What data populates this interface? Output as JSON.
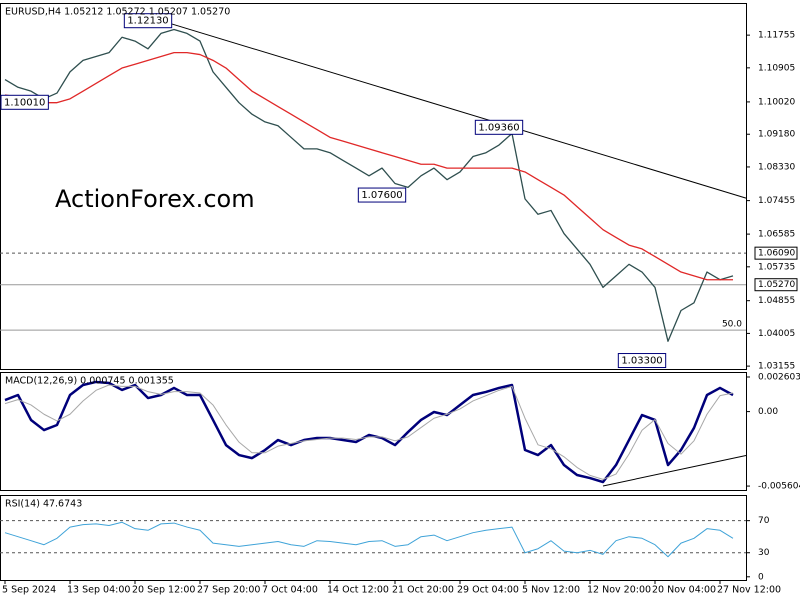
{
  "chart_data": [
    {
      "type": "line",
      "title": "EURUSD,H4  1.05212 1.05272 1.05207 1.05270",
      "watermark": "ActionForex.com",
      "categories": [
        "5 Sep 2024",
        null,
        null,
        null,
        null,
        "13 Sep 04:00",
        null,
        null,
        null,
        null,
        "20 Sep 12:00",
        null,
        null,
        null,
        null,
        "27 Sep 20:00",
        null,
        null,
        null,
        null,
        "7 Oct 04:00",
        null,
        null,
        null,
        null,
        "14 Oct 12:00",
        null,
        null,
        null,
        null,
        "21 Oct 20:00",
        null,
        null,
        null,
        null,
        "29 Oct 04:00",
        null,
        null,
        null,
        null,
        "5 Nov 12:00",
        null,
        null,
        null,
        null,
        "12 Nov 20:00",
        null,
        null,
        null,
        null,
        "20 Nov 04:00",
        null,
        null,
        null,
        null,
        "27 Nov 12:00",
        null
      ],
      "series": [
        {
          "color": "#2f4f4f",
          "values": [
            1.106,
            1.104,
            1.103,
            1.101,
            1.1025,
            1.108,
            1.111,
            1.112,
            1.113,
            1.117,
            1.116,
            1.114,
            1.118,
            1.119,
            1.118,
            1.116,
            1.108,
            1.104,
            1.1,
            1.097,
            1.095,
            1.094,
            1.091,
            1.088,
            1.088,
            1.087,
            1.085,
            1.083,
            1.081,
            1.083,
            1.079,
            1.078,
            1.081,
            1.083,
            1.08,
            1.082,
            1.086,
            1.087,
            1.089,
            1.092,
            1.075,
            1.071,
            1.072,
            1.066,
            1.062,
            1.058,
            1.052,
            1.055,
            1.058,
            1.056,
            1.052,
            1.038,
            1.046,
            1.048,
            1.056,
            1.054,
            1.055
          ]
        },
        {
          "color": "#e02828",
          "values": [
            1.102,
            1.1015,
            1.101,
            1.1,
            1.1,
            1.101,
            1.103,
            1.105,
            1.107,
            1.109,
            1.11,
            1.111,
            1.112,
            1.113,
            1.113,
            1.1125,
            1.111,
            1.109,
            1.106,
            1.103,
            1.101,
            1.099,
            1.097,
            1.095,
            1.093,
            1.091,
            1.09,
            1.089,
            1.088,
            1.087,
            1.086,
            1.085,
            1.084,
            1.084,
            1.083,
            1.083,
            1.083,
            1.083,
            1.083,
            1.083,
            1.082,
            1.08,
            1.078,
            1.076,
            1.073,
            1.07,
            1.067,
            1.065,
            1.063,
            1.062,
            1.06,
            1.058,
            1.056,
            1.055,
            1.054,
            1.054,
            1.054
          ]
        }
      ],
      "ylim": [
        1.0308,
        1.1259
      ],
      "yticks": [
        1.11755,
        1.10905,
        {
          "value": 1.1002,
          "label": "1.10020"
        },
        {
          "value": 1.0918,
          "label": "1.09180"
        },
        {
          "value": 1.0833,
          "label": "1.08330"
        },
        1.07455,
        1.06585,
        1.05735,
        1.04855,
        1.04005,
        1.03155
      ],
      "levels": [
        {
          "value": 1.0609,
          "label": "1.06090",
          "style": "dashed"
        },
        {
          "value": 1.0527,
          "label": "1.05270",
          "style": "solid"
        },
        {
          "value": 1.0409,
          "label": "50.0",
          "style": "solid",
          "label_position": "inside"
        }
      ],
      "annotations": [
        {
          "x": 11,
          "value": 1.1213,
          "label": "1.12130"
        },
        {
          "x": 1,
          "value": 1.1001,
          "label": "1.10010"
        },
        {
          "x": 38,
          "value": 1.0936,
          "label": "1.09360"
        },
        {
          "x": 29,
          "value": 1.076,
          "label": "1.07600"
        },
        {
          "x": 49,
          "value": 1.033,
          "label": "1.03300"
        }
      ],
      "trendline": {
        "x": [
          12,
          57
        ],
        "values": [
          1.1213,
          1.0752
        ]
      }
    },
    {
      "type": "line",
      "title": "MACD(12,26,9) 0.000745 0.001355",
      "series": [
        {
          "color": "#00007a",
          "width": 2.5,
          "values": [
            0.00087,
            0.00125,
            -0.00063,
            -0.00139,
            -0.00101,
            0.00125,
            0.002,
            0.00223,
            0.00215,
            0.00163,
            0.002,
            0.00102,
            0.00125,
            0.00178,
            0.00125,
            0.00125,
            -0.00063,
            -0.00252,
            -0.00327,
            -0.0035,
            -0.00289,
            -0.00214,
            -0.00252,
            -0.00214,
            -0.00199,
            -0.00199,
            -0.00214,
            -0.00229,
            -0.00176,
            -0.00199,
            -0.00252,
            -0.00154,
            -0.00063,
            -3e-05,
            -0.00026,
            0.0005,
            0.00125,
            0.00148,
            0.00178,
            0.002,
            -0.00289,
            -0.00327,
            -0.00252,
            -0.00402,
            -0.00477,
            -0.005,
            -0.0053,
            -0.00402,
            -0.00214,
            -0.00026,
            -0.00063,
            -0.00402,
            -0.00289,
            -0.00123,
            0.00125,
            0.00178,
            0.00125
          ]
        },
        {
          "color": "#a8a8a8",
          "width": 1,
          "values": [
            0.0006,
            0.0009,
            0.0005,
            -0.0002,
            -0.0007,
            -0.0002,
            0.0008,
            0.0016,
            0.002,
            0.0019,
            0.0019,
            0.0015,
            0.0013,
            0.0015,
            0.0015,
            0.0014,
            0.0005,
            -0.001,
            -0.0023,
            -0.0031,
            -0.0031,
            -0.0026,
            -0.0024,
            -0.0022,
            -0.0021,
            -0.002,
            -0.002,
            -0.0021,
            -0.0019,
            -0.0019,
            -0.0022,
            -0.0019,
            -0.0012,
            -0.0005,
            -0.0002,
            0.0002,
            0.0008,
            0.0012,
            0.0016,
            0.0019,
            -0.0005,
            -0.0025,
            -0.0028,
            -0.0034,
            -0.0042,
            -0.0048,
            -0.0051,
            -0.0047,
            -0.0032,
            -0.0014,
            -0.0006,
            -0.0024,
            -0.0032,
            -0.0022,
            -0.0002,
            0.0012,
            0.0014
          ]
        }
      ],
      "ylim": [
        -0.0059,
        0.00298
      ],
      "yticks": [
        0.002603,
        {
          "value": 0,
          "label": "0.00"
        },
        -0.005604
      ],
      "trendline": {
        "x": [
          46,
          57
        ],
        "values": [
          -0.0056,
          -0.0033
        ]
      }
    },
    {
      "type": "line",
      "title": "RSI(14) 47.6743",
      "series": [
        {
          "color": "#3fa3d8",
          "width": 1,
          "values": [
            55,
            50,
            45,
            40,
            48,
            62,
            65,
            66,
            64,
            68,
            60,
            58,
            66,
            67,
            62,
            58,
            42,
            40,
            38,
            40,
            42,
            44,
            40,
            38,
            45,
            44,
            42,
            40,
            44,
            45,
            38,
            40,
            50,
            52,
            45,
            50,
            55,
            58,
            60,
            62,
            30,
            35,
            45,
            32,
            30,
            33,
            28,
            45,
            50,
            48,
            40,
            25,
            42,
            48,
            60,
            58,
            48
          ]
        }
      ],
      "ylim": [
        -4,
        102
      ],
      "yticks": [
        70,
        30,
        0
      ],
      "levels": [
        {
          "value": 70,
          "style": "dashed"
        },
        {
          "value": 30,
          "style": "dashed"
        }
      ]
    }
  ]
}
